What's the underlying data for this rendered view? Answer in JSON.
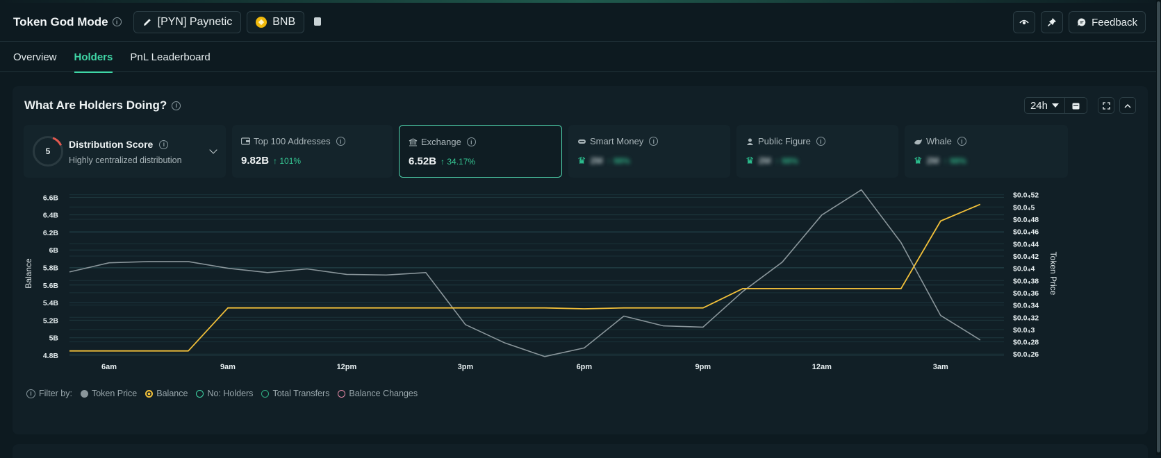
{
  "header": {
    "title": "Token God Mode",
    "token_label": "[PYN] Paynetic",
    "chain_label": "BNB",
    "feedback_label": "Feedback"
  },
  "tabs": [
    {
      "label": "Overview"
    },
    {
      "label": "Holders"
    },
    {
      "label": "PnL Leaderboard"
    }
  ],
  "panel": {
    "title": "What Are Holders Doing?",
    "range_label": "24h"
  },
  "distribution": {
    "score": "5",
    "title": "Distribution Score",
    "subtitle": "Highly centralized distribution"
  },
  "cards": [
    {
      "label": "Top 100 Addresses",
      "value": "9.82B",
      "change": "↑ 101%",
      "locked": false
    },
    {
      "label": "Exchange",
      "value": "6.52B",
      "change": "↑ 34.17%",
      "locked": false
    },
    {
      "label": "Smart Money",
      "value": "2M",
      "change": "↑ 98%",
      "locked": true
    },
    {
      "label": "Public Figure",
      "value": "2M",
      "change": "↑ 98%",
      "locked": true
    },
    {
      "label": "Whale",
      "value": "2M",
      "change": "↑ 98%",
      "locked": true
    }
  ],
  "legend": {
    "filter_label": "Filter by:",
    "items": [
      {
        "label": "Token Price"
      },
      {
        "label": "Balance"
      },
      {
        "label": "No: Holders"
      },
      {
        "label": "Total Transfers"
      },
      {
        "label": "Balance Changes"
      }
    ]
  },
  "colors": {
    "accent": "#3fd6a6",
    "balance": "#f3c13a",
    "token_price": "#8a969b"
  },
  "chart_data": {
    "type": "line",
    "ylabel": "Balance",
    "y2label": "Token Price",
    "x_tick_labels": [
      "6am",
      "9am",
      "12pm",
      "3pm",
      "6pm",
      "9pm",
      "12am",
      "3am"
    ],
    "x": [
      5,
      5.5,
      6,
      6.5,
      7,
      7.5,
      8,
      8.5,
      9,
      9.5,
      10,
      10.5,
      11,
      11.5,
      12,
      12.5,
      13,
      13.5,
      14,
      14.5,
      15,
      15.5,
      16,
      16.5,
      17,
      17.5,
      18,
      18.5,
      19,
      19.5,
      20,
      20.5,
      21,
      21.5,
      22,
      22.5,
      23,
      23.5,
      24,
      24.5,
      25,
      25.5,
      26,
      26.5,
      27,
      27.5,
      28,
      28.5
    ],
    "x_ticks_hours": [
      6,
      9,
      12,
      15,
      18,
      21,
      24,
      27
    ],
    "ylim": [
      4.8,
      6.65
    ],
    "y_ticks": [
      "4.8B",
      "5B",
      "5.2B",
      "5.4B",
      "5.6B",
      "5.8B",
      "6B",
      "6.2B",
      "6.4B",
      "6.6B"
    ],
    "y2lim": [
      2.58e-05,
      5.23e-05
    ],
    "y2_ticks": [
      "$0.0₄26",
      "$0.0₄28",
      "$0.0₄3",
      "$0.0₄32",
      "$0.0₄34",
      "$0.0₄36",
      "$0.0₄38",
      "$0.0₄4",
      "$0.0₄42",
      "$0.0₄44",
      "$0.0₄46",
      "$0.0₄48",
      "$0.0₄5",
      "$0.0₄52"
    ],
    "series": [
      {
        "name": "Token Price",
        "axis": "right",
        "points": [
          [
            5,
            3.94e-05
          ],
          [
            6,
            4.09e-05
          ],
          [
            7,
            4.11e-05
          ],
          [
            8,
            4.11e-05
          ],
          [
            9,
            4e-05
          ],
          [
            10,
            3.93e-05
          ],
          [
            11,
            3.99e-05
          ],
          [
            12,
            3.9e-05
          ],
          [
            13,
            3.89e-05
          ],
          [
            14,
            3.93e-05
          ],
          [
            15,
            3.08e-05
          ],
          [
            16,
            2.78e-05
          ],
          [
            17,
            2.56e-05
          ],
          [
            18,
            2.7e-05
          ],
          [
            19,
            3.22e-05
          ],
          [
            20,
            3.06e-05
          ],
          [
            21,
            3.04e-05
          ],
          [
            22,
            3.62e-05
          ],
          [
            23,
            4.1e-05
          ],
          [
            24,
            4.87e-05
          ],
          [
            25,
            5.28e-05
          ],
          [
            26,
            4.42e-05
          ],
          [
            27,
            3.23e-05
          ],
          [
            28,
            2.83e-05
          ]
        ]
      },
      {
        "name": "Balance",
        "axis": "left",
        "points": [
          [
            5,
            4.85
          ],
          [
            6,
            4.85
          ],
          [
            7,
            4.85
          ],
          [
            8,
            4.85
          ],
          [
            9,
            5.34
          ],
          [
            10,
            5.34
          ],
          [
            11,
            5.34
          ],
          [
            12,
            5.34
          ],
          [
            13,
            5.34
          ],
          [
            14,
            5.34
          ],
          [
            15,
            5.34
          ],
          [
            16,
            5.34
          ],
          [
            17,
            5.34
          ],
          [
            18,
            5.33
          ],
          [
            19,
            5.34
          ],
          [
            20,
            5.34
          ],
          [
            21,
            5.34
          ],
          [
            22,
            5.56
          ],
          [
            23,
            5.56
          ],
          [
            24,
            5.56
          ],
          [
            25,
            5.56
          ],
          [
            26,
            5.56
          ],
          [
            27,
            6.33
          ],
          [
            28,
            6.52
          ]
        ]
      }
    ]
  }
}
